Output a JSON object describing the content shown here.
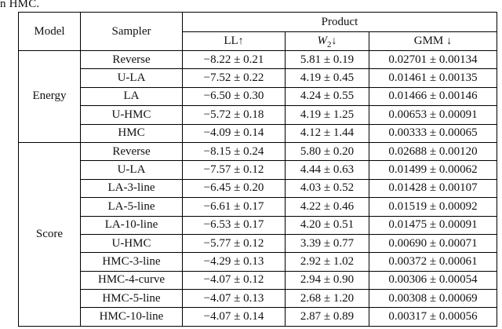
{
  "caption_fragment": "n HMC.",
  "table": {
    "header": {
      "model": "Model",
      "sampler": "Sampler",
      "group_title": "Product",
      "metrics": [
        {
          "label": "LL",
          "sub": "",
          "arrow": "↑",
          "italic": false
        },
        {
          "label": "W",
          "sub": "2",
          "arrow": "↓",
          "italic": true
        },
        {
          "label": "GMM",
          "sub": "",
          "arrow": "↓",
          "italic": false
        }
      ]
    },
    "groups": [
      {
        "model": "Energy",
        "rows": [
          {
            "sampler": "Reverse",
            "ll": "−8.22 ± 0.21",
            "w2": "5.81 ± 0.19",
            "gmm": "0.02701 ± 0.00134",
            "bold": [
              false,
              false,
              false
            ]
          },
          {
            "sampler": "U-LA",
            "ll": "−7.52 ± 0.22",
            "w2": "4.19 ± 0.45",
            "gmm": "0.01461 ± 0.00135",
            "bold": [
              false,
              false,
              false
            ]
          },
          {
            "sampler": "LA",
            "ll": "−6.50 ± 0.30",
            "w2": "4.24 ± 0.55",
            "gmm": "0.01466 ± 0.00146",
            "bold": [
              false,
              false,
              false
            ]
          },
          {
            "sampler": "U-HMC",
            "ll": "−5.72 ± 0.18",
            "w2": "4.19 ± 1.25",
            "gmm": "0.00653 ± 0.00091",
            "bold": [
              false,
              false,
              false
            ]
          },
          {
            "sampler": "HMC",
            "ll": "−4.09 ± 0.14",
            "w2": "4.12 ± 1.44",
            "gmm": "0.00333 ± 0.00065",
            "bold": [
              true,
              true,
              true
            ]
          }
        ]
      },
      {
        "model": "Score",
        "rows": [
          {
            "sampler": "Reverse",
            "ll": "−8.15 ± 0.24",
            "w2": "5.80 ± 0.20",
            "gmm": "0.02688 ± 0.00120",
            "bold": [
              false,
              false,
              false
            ]
          },
          {
            "sampler": "U-LA",
            "ll": "−7.57 ± 0.12",
            "w2": "4.44 ± 0.63",
            "gmm": "0.01499 ± 0.00062",
            "bold": [
              false,
              false,
              false
            ]
          },
          {
            "sampler": "LA-3-line",
            "ll": "−6.45 ± 0.20",
            "w2": "4.03 ± 0.52",
            "gmm": "0.01428 ± 0.00107",
            "bold": [
              false,
              false,
              false
            ]
          },
          {
            "sampler": "LA-5-line",
            "ll": "−6.61 ± 0.17",
            "w2": "4.22 ± 0.46",
            "gmm": "0.01519 ± 0.00092",
            "bold": [
              false,
              false,
              false
            ]
          },
          {
            "sampler": "LA-10-line",
            "ll": "−6.53 ± 0.17",
            "w2": "4.20 ± 0.51",
            "gmm": "0.01475 ± 0.00091",
            "bold": [
              false,
              false,
              false
            ]
          },
          {
            "sampler": "U-HMC",
            "ll": "−5.77 ± 0.12",
            "w2": "3.39 ± 0.77",
            "gmm": "0.00690 ± 0.00071",
            "bold": [
              false,
              false,
              false
            ]
          },
          {
            "sampler": "HMC-3-line",
            "ll": "−4.29 ± 0.13",
            "w2": "2.92 ± 1.02",
            "gmm": "0.00372 ± 0.00061",
            "bold": [
              false,
              false,
              false
            ]
          },
          {
            "sampler": "HMC-4-curve",
            "ll": "−4.07 ± 0.12",
            "w2": "2.94 ± 0.90",
            "gmm": "0.00306 ± 0.00054",
            "bold": [
              true,
              false,
              true
            ]
          },
          {
            "sampler": "HMC-5-line",
            "ll": "−4.07 ± 0.13",
            "w2": "2.68 ± 1.20",
            "gmm": "0.00308 ± 0.00069",
            "bold": [
              true,
              true,
              false
            ]
          },
          {
            "sampler": "HMC-10-line",
            "ll": "−4.07 ± 0.14",
            "w2": "2.87 ± 0.89",
            "gmm": "0.00317 ± 0.00056",
            "bold": [
              true,
              false,
              false
            ]
          }
        ]
      }
    ]
  }
}
